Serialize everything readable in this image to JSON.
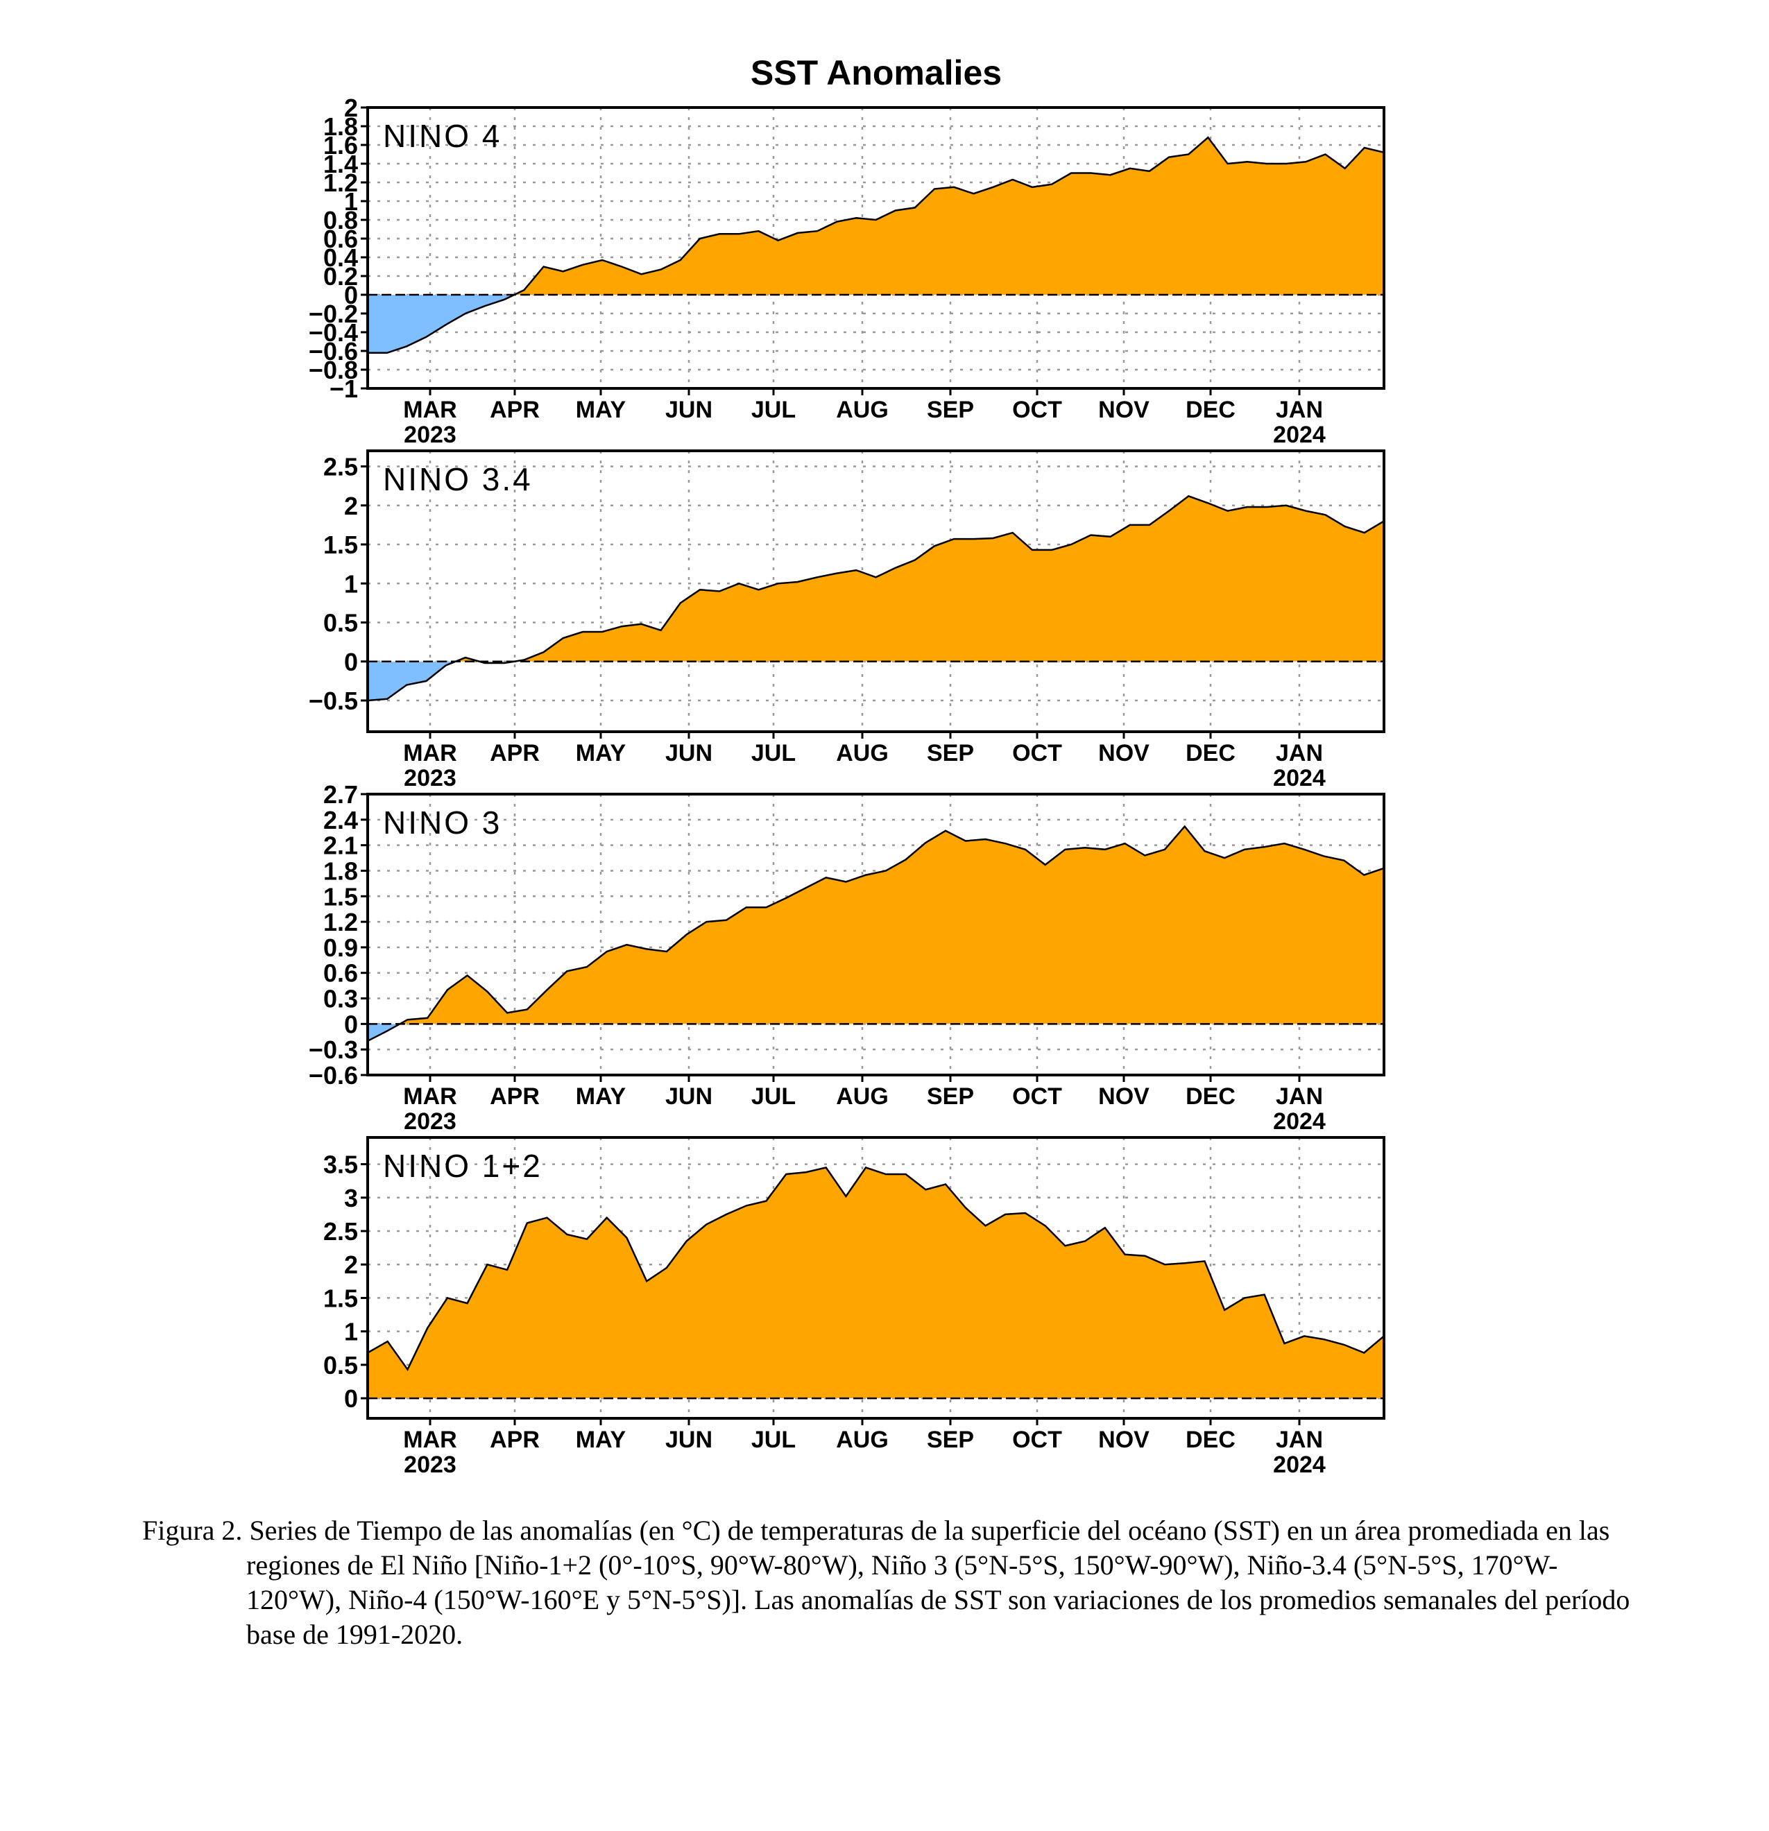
{
  "figure_title": "SST Anomalies",
  "colors": {
    "positive": "#ffa500",
    "negative": "#80bfff",
    "frame": "#000000",
    "grid": "#999999"
  },
  "chart_data": [
    {
      "type": "area",
      "panel_label": "NINO 4",
      "x_tick_labels": [
        "MAR",
        "APR",
        "MAY",
        "JUN",
        "JUL",
        "AUG",
        "SEP",
        "OCT",
        "NOV",
        "DEC",
        "JAN"
      ],
      "x_year_labels": {
        "MAR": "2023",
        "JAN": "2024"
      },
      "ylim": [
        -1,
        2
      ],
      "y_ticks": [
        -1,
        -0.8,
        -0.6,
        -0.4,
        -0.2,
        0,
        0.2,
        0.4,
        0.6,
        0.8,
        1,
        1.2,
        1.4,
        1.6,
        1.8,
        2
      ],
      "y_tick_labels": [
        "−1",
        "−0.8",
        "−0.6",
        "−0.4",
        "−0.2",
        "0",
        "0.2",
        "0.4",
        "0.6",
        "0.8",
        "1",
        "1.2",
        "1.4",
        "1.6",
        "1.8",
        "2"
      ],
      "values": [
        -0.62,
        -0.62,
        -0.55,
        -0.45,
        -0.32,
        -0.2,
        -0.12,
        -0.05,
        0.05,
        0.3,
        0.25,
        0.32,
        0.37,
        0.3,
        0.22,
        0.27,
        0.37,
        0.6,
        0.65,
        0.65,
        0.68,
        0.58,
        0.66,
        0.68,
        0.78,
        0.82,
        0.8,
        0.9,
        0.93,
        1.13,
        1.15,
        1.08,
        1.15,
        1.23,
        1.15,
        1.18,
        1.3,
        1.3,
        1.28,
        1.35,
        1.32,
        1.47,
        1.5,
        1.68,
        1.4,
        1.42,
        1.4,
        1.4,
        1.42,
        1.5,
        1.35,
        1.57,
        1.52
      ]
    },
    {
      "type": "area",
      "panel_label": "NINO 3.4",
      "x_tick_labels": [
        "MAR",
        "APR",
        "MAY",
        "JUN",
        "JUL",
        "AUG",
        "SEP",
        "OCT",
        "NOV",
        "DEC",
        "JAN"
      ],
      "x_year_labels": {
        "MAR": "2023",
        "JAN": "2024"
      },
      "ylim": [
        -0.9,
        2.7
      ],
      "y_ticks": [
        -0.5,
        0,
        0.5,
        1,
        1.5,
        2,
        2.5
      ],
      "y_tick_labels": [
        "−0.5",
        "0",
        "0.5",
        "1",
        "1.5",
        "2",
        "2.5"
      ],
      "values": [
        -0.5,
        -0.48,
        -0.3,
        -0.25,
        -0.05,
        0.05,
        -0.02,
        -0.02,
        0.02,
        0.12,
        0.3,
        0.38,
        0.38,
        0.45,
        0.48,
        0.4,
        0.75,
        0.92,
        0.9,
        1.0,
        0.92,
        1.0,
        1.02,
        1.08,
        1.13,
        1.17,
        1.08,
        1.2,
        1.3,
        1.48,
        1.57,
        1.57,
        1.58,
        1.65,
        1.43,
        1.43,
        1.5,
        1.62,
        1.6,
        1.75,
        1.75,
        1.93,
        2.12,
        2.03,
        1.93,
        1.98,
        1.98,
        2.0,
        1.93,
        1.88,
        1.73,
        1.65,
        1.8
      ]
    },
    {
      "type": "area",
      "panel_label": "NINO 3",
      "x_tick_labels": [
        "MAR",
        "APR",
        "MAY",
        "JUN",
        "JUL",
        "AUG",
        "SEP",
        "OCT",
        "NOV",
        "DEC",
        "JAN"
      ],
      "x_year_labels": {
        "MAR": "2023",
        "JAN": "2024"
      },
      "ylim": [
        -0.6,
        2.7
      ],
      "y_ticks": [
        -0.6,
        -0.3,
        0,
        0.3,
        0.6,
        0.9,
        1.2,
        1.5,
        1.8,
        2.1,
        2.4,
        2.7
      ],
      "y_tick_labels": [
        "−0.6",
        "−0.3",
        "0",
        "0.3",
        "0.6",
        "0.9",
        "1.2",
        "1.5",
        "1.8",
        "2.1",
        "2.4",
        "2.7"
      ],
      "values": [
        -0.2,
        -0.08,
        0.05,
        0.07,
        0.4,
        0.57,
        0.38,
        0.13,
        0.17,
        0.4,
        0.62,
        0.67,
        0.85,
        0.93,
        0.88,
        0.85,
        1.05,
        1.2,
        1.22,
        1.37,
        1.37,
        1.48,
        1.6,
        1.72,
        1.67,
        1.75,
        1.8,
        1.93,
        2.13,
        2.27,
        2.15,
        2.17,
        2.12,
        2.05,
        1.87,
        2.05,
        2.07,
        2.05,
        2.12,
        1.98,
        2.05,
        2.32,
        2.03,
        1.95,
        2.05,
        2.08,
        2.12,
        2.05,
        1.97,
        1.92,
        1.75,
        1.83
      ]
    },
    {
      "type": "area",
      "panel_label": "NINO 1+2",
      "x_tick_labels": [
        "MAR",
        "APR",
        "MAY",
        "JUN",
        "JUL",
        "AUG",
        "SEP",
        "OCT",
        "NOV",
        "DEC",
        "JAN"
      ],
      "x_year_labels": {
        "MAR": "2023",
        "JAN": "2024"
      },
      "ylim": [
        -0.3,
        3.9
      ],
      "y_ticks": [
        0,
        0.5,
        1,
        1.5,
        2,
        2.5,
        3,
        3.5
      ],
      "y_tick_labels": [
        "0",
        "0.5",
        "1",
        "1.5",
        "2",
        "2.5",
        "3",
        "3.5"
      ],
      "values": [
        0.68,
        0.85,
        0.43,
        1.05,
        1.5,
        1.42,
        2.0,
        1.92,
        2.62,
        2.7,
        2.45,
        2.38,
        2.7,
        2.4,
        1.75,
        1.95,
        2.35,
        2.6,
        2.75,
        2.88,
        2.95,
        3.35,
        3.38,
        3.45,
        3.02,
        3.45,
        3.35,
        3.35,
        3.12,
        3.2,
        2.85,
        2.58,
        2.75,
        2.77,
        2.58,
        2.28,
        2.35,
        2.55,
        2.15,
        2.13,
        2.0,
        2.02,
        2.05,
        1.32,
        1.5,
        1.55,
        0.82,
        0.93,
        0.88,
        0.8,
        0.68,
        0.93
      ]
    }
  ],
  "caption": {
    "label": "Figura 2.",
    "text": "Series de Tiempo de las anomalías (en °C) de temperaturas de la superficie del océano (SST) en un área promediada en las regiones de El Niño [Niño-1+2 (0°-10°S, 90°W-80°W), Niño 3 (5°N-5°S, 150°W-90°W), Niño-3.4 (5°N-5°S, 170°W-120°W), Niño-4 (150°W-160°E y 5°N-5°S)]. Las anomalías de SST son variaciones de los promedios semanales del período base de 1991-2020."
  }
}
